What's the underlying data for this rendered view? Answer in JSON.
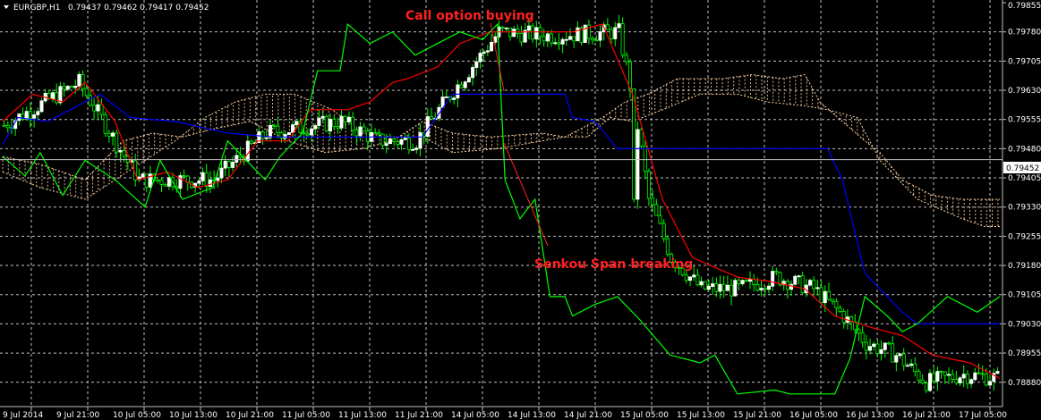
{
  "header": {
    "symbol": "EURGBP,H1",
    "ohlc": "0.79437 0.79462 0.79417 0.79452"
  },
  "annotations": {
    "call": "Call option buying",
    "senkou": "Senkou Span breaking"
  },
  "colors": {
    "background": "#000000",
    "grid": "#c0c0c0",
    "bull": "#ffffff",
    "bear": "#00ff00",
    "tenkan": "#ff0000",
    "kijun": "#0000ff",
    "chikou": "#00ff00",
    "cloud": "#ffd0a0",
    "annotation": "#ff2020",
    "current_price_line": "#c0c0c0"
  },
  "chart_data": {
    "type": "line",
    "ylim": [
      0.78845,
      0.79855
    ],
    "y_ticks": [
      "0.79855",
      "0.79780",
      "0.79705",
      "0.79630",
      "0.79555",
      "0.79480",
      "0.79405",
      "0.79330",
      "0.79255",
      "0.79180",
      "0.79105",
      "0.79030",
      "0.78955",
      "0.78880"
    ],
    "x_ticks": [
      "9 Jul 2014",
      "9 Jul 21:00",
      "10 Jul 05:00",
      "10 Jul 13:00",
      "10 Jul 21:00",
      "11 Jul 05:00",
      "11 Jul 13:00",
      "11 Jul 21:00",
      "14 Jul 05:00",
      "14 Jul 13:00",
      "14 Jul 21:00",
      "15 Jul 05:00",
      "15 Jul 13:00",
      "15 Jul 21:00",
      "16 Jul 05:00",
      "16 Jul 13:00",
      "16 Jul 21:00",
      "17 Jul 05:00"
    ],
    "current_price": "0.79452",
    "series": [
      {
        "name": "",
        "role": "tenkan",
        "values": [
          [
            0,
            0.7955
          ],
          [
            8,
            0.7962
          ],
          [
            16,
            0.796
          ],
          [
            22,
            0.7965
          ],
          [
            30,
            0.7955
          ],
          [
            36,
            0.794
          ],
          [
            44,
            0.7942
          ],
          [
            52,
            0.7938
          ],
          [
            60,
            0.794
          ],
          [
            68,
            0.795
          ],
          [
            76,
            0.795
          ],
          [
            82,
            0.7958
          ],
          [
            92,
            0.7958
          ],
          [
            98,
            0.796
          ],
          [
            104,
            0.7965
          ],
          [
            108,
            0.7966
          ],
          [
            116,
            0.7969
          ],
          [
            122,
            0.7975
          ],
          [
            130,
            0.7978
          ],
          [
            140,
            0.7978
          ],
          [
            152,
            0.7978
          ],
          [
            160,
            0.798
          ],
          [
            168,
            0.7962
          ],
          [
            176,
            0.7935
          ],
          [
            184,
            0.792
          ],
          [
            196,
            0.7915
          ],
          [
            204,
            0.7914
          ],
          [
            214,
            0.7912
          ],
          [
            222,
            0.7905
          ],
          [
            232,
            0.7902
          ],
          [
            240,
            0.79
          ],
          [
            248,
            0.7895
          ],
          [
            258,
            0.7893
          ],
          [
            266,
            0.7889
          ]
        ]
      },
      {
        "name": "",
        "role": "kijun",
        "values": [
          [
            0,
            0.7949
          ],
          [
            4,
            0.7956
          ],
          [
            12,
            0.7955
          ],
          [
            20,
            0.7959
          ],
          [
            26,
            0.7962
          ],
          [
            34,
            0.7956
          ],
          [
            46,
            0.7955
          ],
          [
            60,
            0.7952
          ],
          [
            72,
            0.7951
          ],
          [
            80,
            0.7951
          ],
          [
            94,
            0.7951
          ],
          [
            104,
            0.7951
          ],
          [
            112,
            0.7951
          ],
          [
            120,
            0.7962
          ],
          [
            130,
            0.7962
          ],
          [
            146,
            0.7962
          ],
          [
            150,
            0.7962
          ],
          [
            152,
            0.7956
          ],
          [
            158,
            0.7955
          ],
          [
            164,
            0.7948
          ],
          [
            176,
            0.7948
          ],
          [
            200,
            0.7948
          ],
          [
            220,
            0.7948
          ],
          [
            224,
            0.794
          ],
          [
            230,
            0.7916
          ],
          [
            240,
            0.7906
          ],
          [
            244,
            0.7903
          ],
          [
            256,
            0.7903
          ],
          [
            266,
            0.7903
          ]
        ]
      },
      {
        "name": "",
        "role": "chikou",
        "values": [
          [
            0,
            0.7946
          ],
          [
            6,
            0.7941
          ],
          [
            10,
            0.7947
          ],
          [
            16,
            0.7936
          ],
          [
            22,
            0.7945
          ],
          [
            30,
            0.794
          ],
          [
            38,
            0.7933
          ],
          [
            42,
            0.7945
          ],
          [
            48,
            0.7935
          ],
          [
            56,
            0.7938
          ],
          [
            60,
            0.795
          ],
          [
            70,
            0.794
          ],
          [
            74,
            0.7946
          ],
          [
            80,
            0.7952
          ],
          [
            84,
            0.7968
          ],
          [
            90,
            0.7968
          ],
          [
            92,
            0.798
          ],
          [
            98,
            0.7975
          ],
          [
            104,
            0.7978
          ],
          [
            110,
            0.7972
          ],
          [
            116,
            0.7975
          ],
          [
            122,
            0.7978
          ],
          [
            128,
            0.7976
          ],
          [
            132,
            0.798
          ],
          [
            134,
            0.794
          ],
          [
            138,
            0.793
          ],
          [
            142,
            0.7935
          ],
          [
            146,
            0.791
          ],
          [
            150,
            0.791
          ],
          [
            152,
            0.7905
          ],
          [
            158,
            0.7908
          ],
          [
            164,
            0.791
          ],
          [
            170,
            0.7904
          ],
          [
            178,
            0.7895
          ],
          [
            186,
            0.7893
          ],
          [
            190,
            0.7895
          ],
          [
            196,
            0.7885
          ],
          [
            206,
            0.7886
          ],
          [
            210,
            0.7885
          ],
          [
            216,
            0.7885
          ],
          [
            222,
            0.7885
          ],
          [
            226,
            0.7894
          ],
          [
            230,
            0.791
          ],
          [
            236,
            0.7905
          ],
          [
            240,
            0.7901
          ],
          [
            244,
            0.7903
          ],
          [
            252,
            0.791
          ],
          [
            260,
            0.7906
          ],
          [
            266,
            0.791
          ]
        ]
      }
    ],
    "cloud": {
      "span_a": [
        [
          0,
          0.7946
        ],
        [
          10,
          0.7944
        ],
        [
          22,
          0.794
        ],
        [
          32,
          0.795
        ],
        [
          40,
          0.7952
        ],
        [
          48,
          0.7951
        ],
        [
          56,
          0.7953
        ],
        [
          66,
          0.7955
        ],
        [
          76,
          0.795
        ],
        [
          86,
          0.7947
        ],
        [
          96,
          0.7948
        ],
        [
          104,
          0.795
        ],
        [
          112,
          0.7955
        ],
        [
          120,
          0.7952
        ],
        [
          130,
          0.7951
        ],
        [
          144,
          0.7952
        ],
        [
          150,
          0.7951
        ],
        [
          160,
          0.7956
        ],
        [
          166,
          0.796
        ],
        [
          172,
          0.7962
        ],
        [
          180,
          0.7966
        ],
        [
          192,
          0.7966
        ],
        [
          200,
          0.7967
        ],
        [
          208,
          0.7966
        ],
        [
          214,
          0.7967
        ],
        [
          218,
          0.796
        ],
        [
          224,
          0.7955
        ],
        [
          230,
          0.795
        ],
        [
          234,
          0.7947
        ],
        [
          240,
          0.794
        ],
        [
          248,
          0.7936
        ],
        [
          256,
          0.7935
        ],
        [
          266,
          0.7935
        ]
      ],
      "span_b": [
        [
          0,
          0.7942
        ],
        [
          10,
          0.7938
        ],
        [
          22,
          0.7935
        ],
        [
          30,
          0.794
        ],
        [
          38,
          0.7945
        ],
        [
          46,
          0.795
        ],
        [
          54,
          0.7956
        ],
        [
          62,
          0.796
        ],
        [
          70,
          0.7962
        ],
        [
          78,
          0.7962
        ],
        [
          88,
          0.7958
        ],
        [
          96,
          0.7952
        ],
        [
          104,
          0.7951
        ],
        [
          112,
          0.7951
        ],
        [
          120,
          0.7947
        ],
        [
          132,
          0.7948
        ],
        [
          144,
          0.795
        ],
        [
          150,
          0.7951
        ],
        [
          156,
          0.7951
        ],
        [
          162,
          0.7956
        ],
        [
          168,
          0.7955
        ],
        [
          176,
          0.7958
        ],
        [
          186,
          0.7962
        ],
        [
          196,
          0.7962
        ],
        [
          204,
          0.796
        ],
        [
          214,
          0.7959
        ],
        [
          220,
          0.7958
        ],
        [
          228,
          0.7956
        ],
        [
          234,
          0.7945
        ],
        [
          244,
          0.7935
        ],
        [
          256,
          0.793
        ],
        [
          262,
          0.7928
        ],
        [
          266,
          0.7928
        ]
      ]
    },
    "candles": {
      "count": 266,
      "phases": [
        [
          0,
          0.7954
        ],
        [
          20,
          0.7965
        ],
        [
          36,
          0.794
        ],
        [
          56,
          0.794
        ],
        [
          70,
          0.7952
        ],
        [
          90,
          0.7955
        ],
        [
          100,
          0.795
        ],
        [
          110,
          0.795
        ],
        [
          116,
          0.7958
        ],
        [
          124,
          0.7968
        ],
        [
          132,
          0.7978
        ],
        [
          146,
          0.7977
        ],
        [
          164,
          0.7978
        ],
        [
          168,
          0.796
        ],
        [
          172,
          0.7935
        ],
        [
          178,
          0.792
        ],
        [
          186,
          0.7912
        ],
        [
          196,
          0.7912
        ],
        [
          206,
          0.7915
        ],
        [
          216,
          0.7912
        ],
        [
          224,
          0.7905
        ],
        [
          230,
          0.7898
        ],
        [
          238,
          0.7895
        ],
        [
          246,
          0.7888
        ],
        [
          256,
          0.789
        ],
        [
          266,
          0.7889
        ]
      ]
    }
  }
}
